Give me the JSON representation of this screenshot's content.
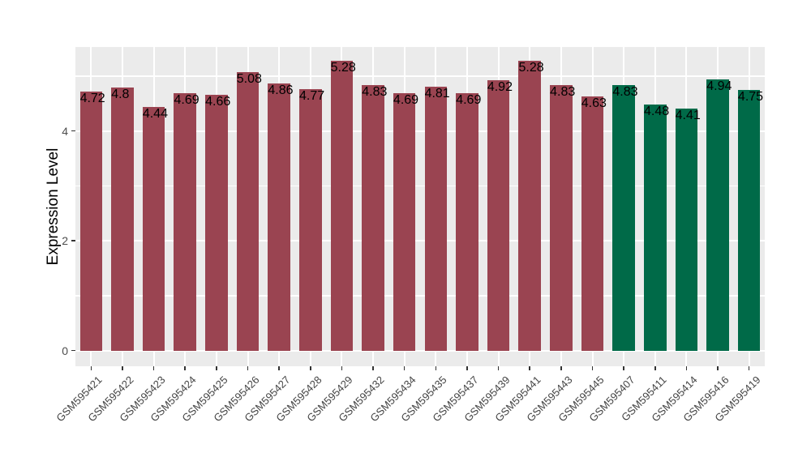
{
  "chart_data": {
    "type": "bar",
    "title": "",
    "xlabel": "",
    "ylabel": "Expression Level",
    "ylim": [
      0,
      5.53
    ],
    "y_ticks": [
      0,
      2,
      4
    ],
    "y_minor_ticks": [
      1,
      3,
      5
    ],
    "grid": true,
    "legend": "none",
    "panel_bg_color": "#EBEBEB",
    "grid_color": "#FFFFFF",
    "group_colors": {
      "left_group": "#9A4451",
      "right_group": "#006A48"
    },
    "categories": [
      "GSM595421",
      "GSM595422",
      "GSM595423",
      "GSM595424",
      "GSM595425",
      "GSM595426",
      "GSM595427",
      "GSM595428",
      "GSM595429",
      "GSM595432",
      "GSM595434",
      "GSM595435",
      "GSM595437",
      "GSM595439",
      "GSM595441",
      "GSM595443",
      "GSM595445",
      "GSM595407",
      "GSM595411",
      "GSM595414",
      "GSM595416",
      "GSM595419"
    ],
    "values": [
      4.72,
      4.8,
      4.44,
      4.69,
      4.66,
      5.08,
      4.86,
      4.77,
      5.28,
      4.83,
      4.69,
      4.81,
      4.69,
      4.92,
      5.28,
      4.83,
      4.63,
      4.83,
      4.48,
      4.41,
      4.94,
      4.75
    ],
    "bar_colors": [
      "#9A4451",
      "#9A4451",
      "#9A4451",
      "#9A4451",
      "#9A4451",
      "#9A4451",
      "#9A4451",
      "#9A4451",
      "#9A4451",
      "#9A4451",
      "#9A4451",
      "#9A4451",
      "#9A4451",
      "#9A4451",
      "#9A4451",
      "#9A4451",
      "#9A4451",
      "#006A48",
      "#006A48",
      "#006A48",
      "#006A48",
      "#006A48"
    ]
  }
}
